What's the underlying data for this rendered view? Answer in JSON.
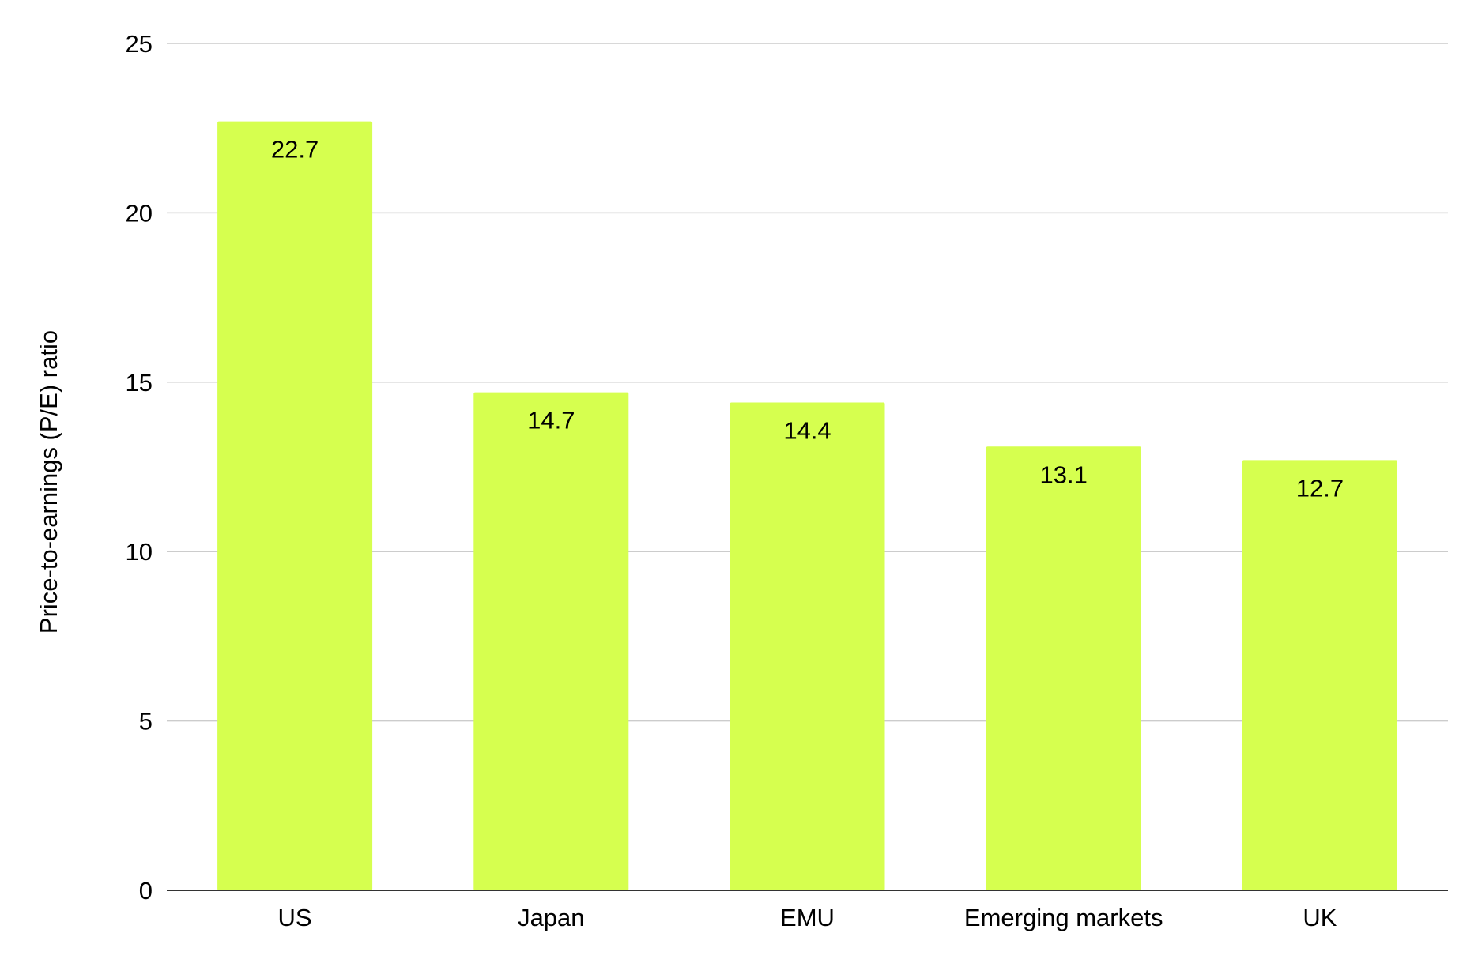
{
  "chart_data": {
    "type": "bar",
    "title": "",
    "xlabel": "",
    "ylabel": "Price-to-earnings (P/E) ratio",
    "categories": [
      "US",
      "Japan",
      "EMU",
      "Emerging markets",
      "UK"
    ],
    "values": [
      22.7,
      14.7,
      14.4,
      13.1,
      12.7
    ],
    "data_labels": [
      "22.7",
      "14.7",
      "14.4",
      "13.1",
      "12.7"
    ],
    "yticks": [
      0,
      5,
      10,
      15,
      20,
      25
    ],
    "ylim": [
      0,
      25
    ],
    "grid": true,
    "legend": "none",
    "colors": {
      "bar": "#d6ff4f",
      "grid": "#cccccc",
      "axis": "#333333",
      "text": "#000000"
    }
  }
}
